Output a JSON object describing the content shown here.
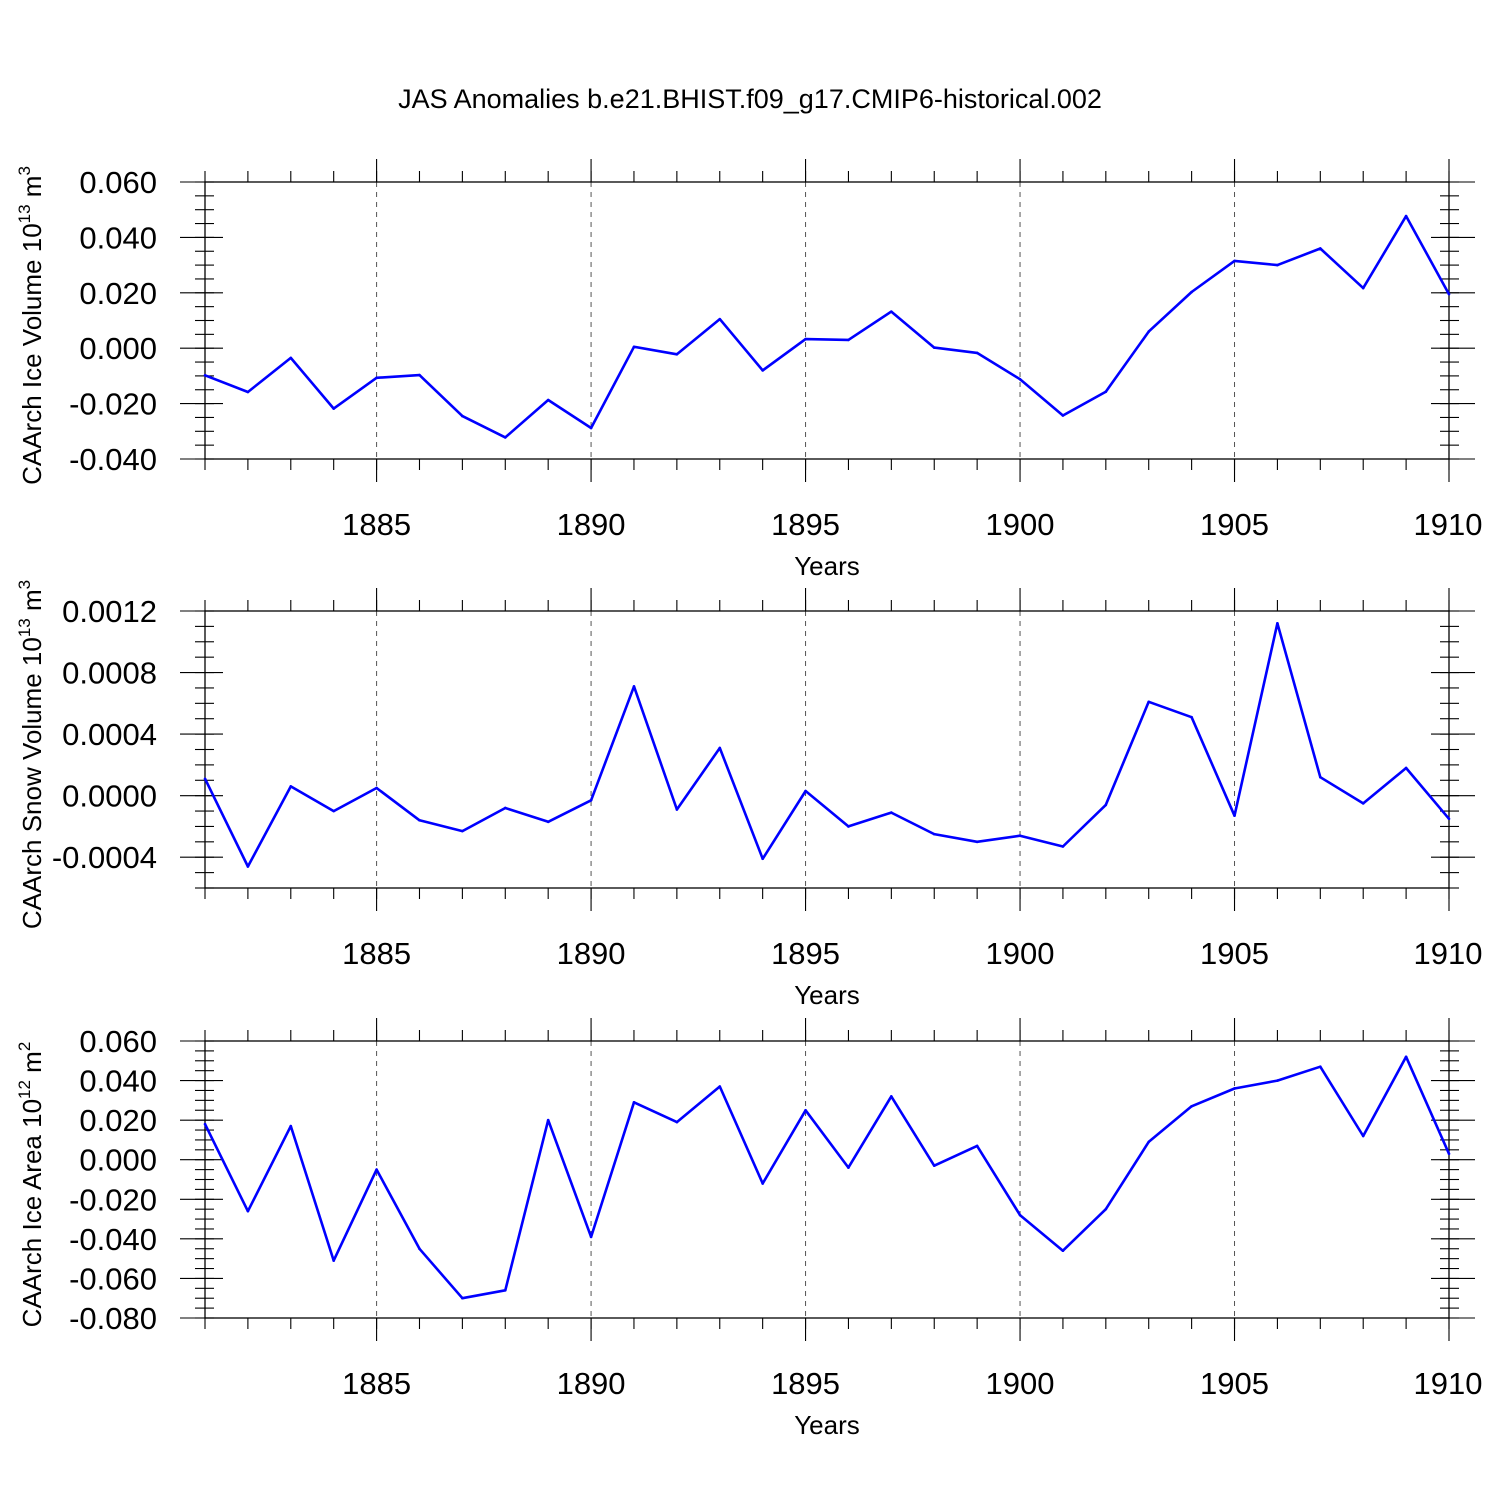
{
  "title": "JAS Anomalies b.e21.BHIST.f09_g17.CMIP6-historical.002",
  "colors": {
    "line": "#0000ff",
    "frame": "#000000",
    "grid": "#555555"
  },
  "chart_data": [
    {
      "type": "line",
      "ylabel": "CAArch Ice Volume 10",
      "ylabel_sup": "13",
      "ylabel_unit": " m",
      "ylabel_unit_sup": "3",
      "xlabel": "Years",
      "xlim": [
        1881,
        1910
      ],
      "ylim": [
        -0.04,
        0.06
      ],
      "xticks": [
        1885,
        1890,
        1895,
        1900,
        1905,
        1910
      ],
      "xtick_labels": [
        "1885",
        "1890",
        "1895",
        "1900",
        "1905",
        "1910"
      ],
      "yticks": [
        -0.04,
        -0.02,
        0.0,
        0.02,
        0.04,
        0.06
      ],
      "ytick_labels": [
        "-0.040",
        "-0.020",
        "0.000",
        "0.020",
        "0.040",
        "0.060"
      ],
      "yminor_step": 0.005,
      "vertical_dashed_grid": true,
      "x": [
        1881,
        1882,
        1883,
        1884,
        1885,
        1886,
        1887,
        1888,
        1889,
        1890,
        1891,
        1892,
        1893,
        1894,
        1895,
        1896,
        1897,
        1898,
        1899,
        1900,
        1901,
        1902,
        1903,
        1904,
        1905,
        1906,
        1907,
        1908,
        1909,
        1910
      ],
      "series": [
        {
          "values": [
            -0.0098,
            -0.0158,
            -0.0035,
            -0.0218,
            -0.0107,
            -0.0097,
            -0.0245,
            -0.0322,
            -0.0187,
            -0.0288,
            0.0005,
            -0.0022,
            0.0105,
            -0.008,
            0.0033,
            0.003,
            0.0132,
            0.0002,
            -0.0017,
            -0.0112,
            -0.0243,
            -0.0157,
            0.006,
            0.0203,
            0.0315,
            0.03,
            0.036,
            0.0217,
            0.0477,
            0.0195
          ]
        }
      ]
    },
    {
      "type": "line",
      "ylabel": "CAArch Snow Volume 10",
      "ylabel_sup": "13",
      "ylabel_unit": " m",
      "ylabel_unit_sup": "3",
      "xlabel": "Years",
      "xlim": [
        1881,
        1910
      ],
      "ylim": [
        -0.0006,
        0.0012
      ],
      "xticks": [
        1885,
        1890,
        1895,
        1900,
        1905,
        1910
      ],
      "xtick_labels": [
        "1885",
        "1890",
        "1895",
        "1900",
        "1905",
        "1910"
      ],
      "yticks": [
        -0.0004,
        0.0,
        0.0004,
        0.0008,
        0.0012
      ],
      "ytick_labels": [
        "-0.0004",
        "0.0000",
        "0.0004",
        "0.0008",
        "0.0012"
      ],
      "yminor_step": 0.0001,
      "vertical_dashed_grid": true,
      "x": [
        1881,
        1882,
        1883,
        1884,
        1885,
        1886,
        1887,
        1888,
        1889,
        1890,
        1891,
        1892,
        1893,
        1894,
        1895,
        1896,
        1897,
        1898,
        1899,
        1900,
        1901,
        1902,
        1903,
        1904,
        1905,
        1906,
        1907,
        1908,
        1909,
        1910
      ],
      "series": [
        {
          "values": [
            0.00011,
            -0.00046,
            6e-05,
            -0.0001,
            5e-05,
            -0.00016,
            -0.00023,
            -8e-05,
            -0.00017,
            -3e-05,
            0.00071,
            -9e-05,
            0.00031,
            -0.00041,
            3e-05,
            -0.0002,
            -0.00011,
            -0.00025,
            -0.0003,
            -0.00026,
            -0.00033,
            -6e-05,
            0.00061,
            0.00051,
            -0.00013,
            0.00112,
            0.00012,
            -5e-05,
            0.00018,
            -0.00015
          ]
        }
      ]
    },
    {
      "type": "line",
      "ylabel": "CAArch Ice Area 10",
      "ylabel_sup": "12",
      "ylabel_unit": " m",
      "ylabel_unit_sup": "2",
      "xlabel": "Years",
      "xlim": [
        1881,
        1910
      ],
      "ylim": [
        -0.08,
        0.06
      ],
      "xticks": [
        1885,
        1890,
        1895,
        1900,
        1905,
        1910
      ],
      "xtick_labels": [
        "1885",
        "1890",
        "1895",
        "1900",
        "1905",
        "1910"
      ],
      "yticks": [
        -0.08,
        -0.06,
        -0.04,
        -0.02,
        0.0,
        0.02,
        0.04,
        0.06
      ],
      "ytick_labels": [
        "-0.080",
        "-0.060",
        "-0.040",
        "-0.020",
        "0.000",
        "0.020",
        "0.040",
        "0.060"
      ],
      "yminor_step": 0.005,
      "vertical_dashed_grid": true,
      "x": [
        1881,
        1882,
        1883,
        1884,
        1885,
        1886,
        1887,
        1888,
        1889,
        1890,
        1891,
        1892,
        1893,
        1894,
        1895,
        1896,
        1897,
        1898,
        1899,
        1900,
        1901,
        1902,
        1903,
        1904,
        1905,
        1906,
        1907,
        1908,
        1909,
        1910
      ],
      "series": [
        {
          "values": [
            0.018,
            -0.026,
            0.017,
            -0.051,
            -0.005,
            -0.045,
            -0.07,
            -0.066,
            0.02,
            -0.039,
            0.029,
            0.019,
            0.037,
            -0.012,
            0.025,
            -0.004,
            0.032,
            -0.003,
            0.007,
            -0.028,
            -0.046,
            -0.025,
            0.009,
            0.027,
            0.036,
            0.04,
            0.047,
            0.012,
            0.052,
            0.003
          ]
        }
      ]
    }
  ]
}
